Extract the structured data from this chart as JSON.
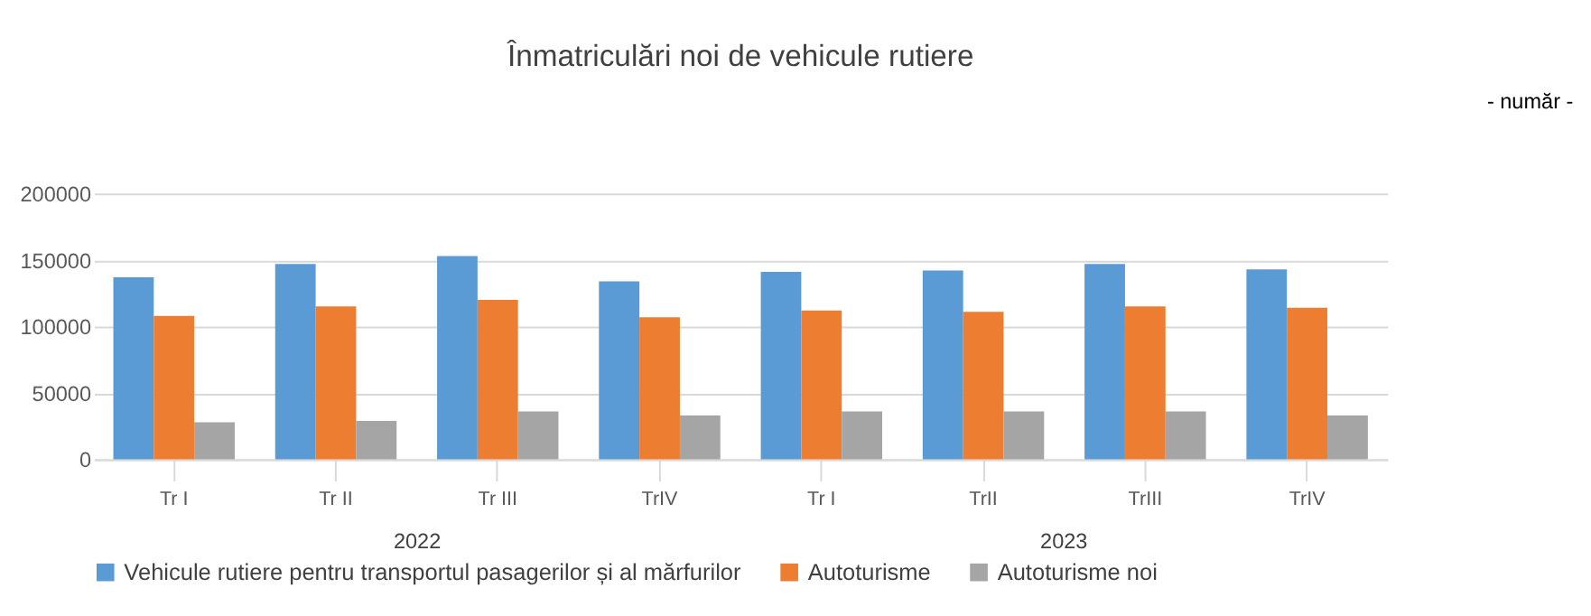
{
  "chart_data": {
    "type": "bar",
    "title": "Înmatriculări noi de vehicule rutiere",
    "categories": [
      "Tr I",
      "Tr II",
      "Tr III",
      "TrIV",
      "Tr I",
      "TrII",
      "TrIII",
      "TrIV"
    ],
    "series": [
      {
        "name": "Vehicule rutiere pentru transportul pasagerilor și al mărfurilor",
        "color": "#5b9bd5",
        "values": [
          137000,
          147000,
          153000,
          134000,
          141000,
          142000,
          147000,
          143000
        ]
      },
      {
        "name": "Autoturisme",
        "color": "#ed7d31",
        "values": [
          108000,
          115000,
          120000,
          107000,
          112000,
          111000,
          115000,
          114000
        ]
      },
      {
        "name": "Autoturisme noi",
        "color": "#a5a5a5",
        "values": [
          28000,
          29000,
          36000,
          33000,
          36000,
          36000,
          36000,
          33000
        ]
      }
    ],
    "ylim": [
      0,
      200000
    ],
    "yticks": [
      0,
      50000,
      100000,
      150000,
      200000
    ],
    "grid": "y",
    "legend": "bottom",
    "annotations": [
      "- număr -",
      "2022",
      "2023"
    ]
  }
}
